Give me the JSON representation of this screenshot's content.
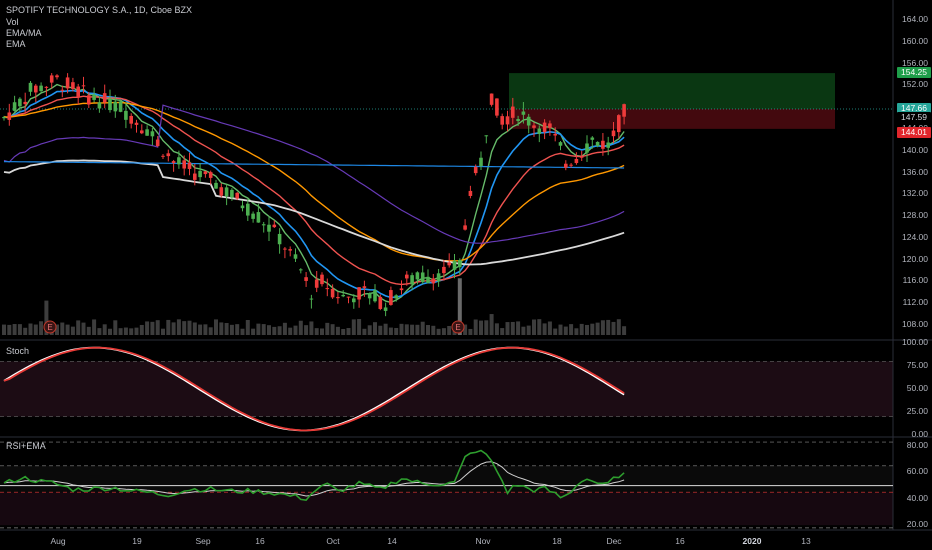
{
  "legend": {
    "title": "SPOTIFY TECHNOLOGY S.A., 1D, Cboe BZX",
    "vol": "Vol",
    "ema_ma": "EMA/MA",
    "ema": "EMA"
  },
  "panes": {
    "stoch_label": "Stoch",
    "rsi_label": "RSI+EMA"
  },
  "price_axis": [
    "164.00",
    "160.00",
    "156.00",
    "152.00",
    "148.00",
    "144.00",
    "140.00",
    "136.00",
    "132.00",
    "128.00",
    "124.00",
    "120.00",
    "116.00",
    "112.00",
    "108.00"
  ],
  "price_tags": [
    {
      "text": "154.25",
      "color": "#1e9e4a"
    },
    {
      "text": "147.66",
      "color": "#26a69a"
    },
    {
      "text": "147.59",
      "color": "#000000"
    },
    {
      "text": "144.01",
      "color": "#e0262c"
    }
  ],
  "stoch_axis": [
    "100.00",
    "75.00",
    "50.00",
    "25.00",
    "0.00"
  ],
  "rsi_axis": [
    "80.00",
    "60.00",
    "40.00",
    "20.00"
  ],
  "time_axis": [
    {
      "text": "Aug",
      "bold": false
    },
    {
      "text": "19",
      "bold": false
    },
    {
      "text": "Sep",
      "bold": false
    },
    {
      "text": "16",
      "bold": false
    },
    {
      "text": "Oct",
      "bold": false
    },
    {
      "text": "14",
      "bold": false
    },
    {
      "text": "Nov",
      "bold": false
    },
    {
      "text": "18",
      "bold": false
    },
    {
      "text": "Dec",
      "bold": false
    },
    {
      "text": "16",
      "bold": false
    },
    {
      "text": "2020",
      "bold": true
    },
    {
      "text": "13",
      "bold": false
    }
  ],
  "earnings_marker": "E",
  "colors": {
    "up": "#4caf50",
    "down": "#ef3b3b",
    "ema_fast": "#66bb6a",
    "ema_mid": "#2196f3",
    "ema_red": "#ef5350",
    "ema_orange": "#ff9800",
    "ma_white": "#d9d9d9",
    "ma_purple": "#673ab7",
    "ema_blue_long": "#1e88e5",
    "stoch_k": "#ffffff",
    "stoch_d": "#e53935",
    "rsi": "#2e9e2e",
    "rsi_ema": "#cfcfcf"
  },
  "chart_data": {
    "type": "candlestick",
    "symbol": "SPOTIFY TECHNOLOGY S.A.",
    "interval": "1D",
    "exchange": "Cboe BZX",
    "ylim": [
      106,
      166
    ],
    "last_price": 147.66,
    "target_zone": [
      147.66,
      154.25
    ],
    "stop_zone": [
      144.01,
      147.66
    ],
    "stoch_range": [
      0,
      100
    ],
    "rsi_range": [
      15,
      85
    ]
  }
}
